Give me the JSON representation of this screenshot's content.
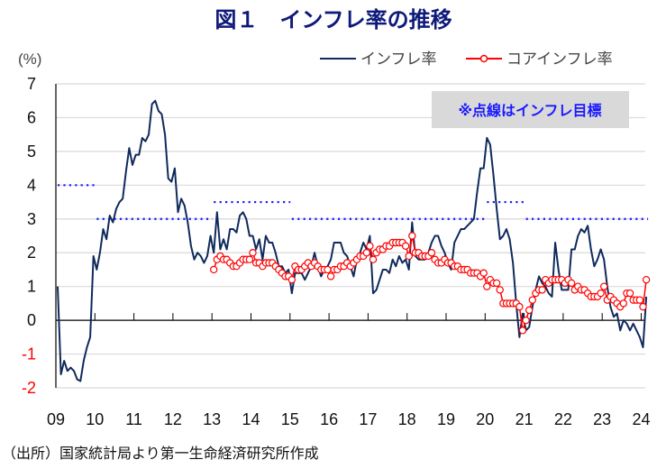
{
  "title": "図１　インフレ率の推移",
  "source": "（出所）国家統計局より第一生命経済研究所作成",
  "chart_data": {
    "type": "line",
    "title": "図１　インフレ率の推移",
    "ylabel": "(%)",
    "xlabel": "",
    "ylim": [
      -2,
      7
    ],
    "yticks": [
      "7",
      "6",
      "5",
      "4",
      "3",
      "2",
      "1",
      "0",
      "-1",
      "-2"
    ],
    "negative_tick_color": "#ff0000",
    "xticks": [
      "09",
      "10",
      "11",
      "12",
      "13",
      "14",
      "15",
      "16",
      "17",
      "18",
      "19",
      "20",
      "21",
      "22",
      "23",
      "24"
    ],
    "xrange": [
      "2009-01",
      "2024-02"
    ],
    "grid": true,
    "legend_placement": "top-right",
    "annotation": "※点線はインフレ目標",
    "series": [
      {
        "name": "インフレ率",
        "color": "#0f2a5c",
        "marker": "none",
        "monthly_values_by_year": {
          "2009": [
            1.0,
            -1.6,
            -1.2,
            -1.5,
            -1.4,
            -1.5,
            -1.75,
            -1.8,
            -1.2,
            -0.8,
            -0.5,
            1.9
          ],
          "2010": [
            1.5,
            2.0,
            2.7,
            2.4,
            3.1,
            2.9,
            3.3,
            3.5,
            3.6,
            4.4,
            5.1,
            4.6
          ],
          "2011": [
            4.9,
            4.9,
            5.4,
            5.3,
            5.5,
            6.4,
            6.5,
            6.2,
            6.1,
            5.5,
            4.2,
            4.1
          ],
          "2012": [
            4.5,
            3.2,
            3.6,
            3.4,
            2.9,
            2.2,
            1.8,
            2.0,
            1.9,
            1.7,
            1.9,
            2.5
          ],
          "2013": [
            2.0,
            3.2,
            2.1,
            2.4,
            2.1,
            2.7,
            2.7,
            2.6,
            3.1,
            3.2,
            3.0,
            2.5
          ],
          "2014": [
            2.5,
            2.1,
            2.4,
            1.8,
            2.5,
            2.3,
            2.3,
            2.0,
            1.6,
            1.6,
            1.4,
            1.5
          ],
          "2015": [
            0.8,
            1.4,
            1.4,
            1.4,
            1.2,
            1.4,
            1.6,
            2.0,
            1.6,
            1.3,
            1.5,
            1.6
          ],
          "2016": [
            1.8,
            2.3,
            2.3,
            2.3,
            2.0,
            1.9,
            1.6,
            1.3,
            1.8,
            2.0,
            2.3,
            2.1
          ],
          "2017": [
            2.5,
            0.8,
            0.9,
            1.2,
            1.5,
            1.5,
            1.4,
            1.8,
            1.6,
            1.9,
            1.7,
            1.8
          ],
          "2018": [
            1.5,
            2.9,
            1.9,
            1.8,
            1.8,
            1.8,
            2.0,
            2.3,
            2.5,
            2.5,
            2.2,
            2.0
          ],
          "2019": [
            1.7,
            1.5,
            2.3,
            2.5,
            2.7,
            2.7,
            2.8,
            2.9,
            3.0,
            3.8,
            4.5,
            4.5
          ],
          "2020": [
            5.4,
            5.2,
            4.3,
            3.3,
            2.4,
            2.5,
            2.7,
            2.4,
            1.7,
            0.5,
            -0.5,
            0.2
          ],
          "2021": [
            -0.3,
            -0.2,
            0.4,
            0.9,
            1.3,
            1.1,
            1.0,
            0.8,
            0.7,
            2.3,
            1.5,
            0.9
          ],
          "2022": [
            0.9,
            0.9,
            2.1,
            2.1,
            2.5,
            2.7,
            2.6,
            2.8,
            2.1,
            1.6,
            1.8,
            2.1
          ],
          "2023": [
            1.8,
            1.0,
            0.4,
            0.1,
            0.2,
            -0.3,
            0.0,
            -0.1,
            -0.3,
            -0.1,
            -0.3,
            -0.5
          ],
          "2024": [
            -0.8,
            0.7
          ]
        }
      },
      {
        "name": "コアインフレ率",
        "color": "#ff0000",
        "marker": "open-circle",
        "monthly_values_by_year": {
          "2013": [
            1.5,
            1.8,
            1.9,
            1.8,
            1.8,
            1.7,
            1.6,
            1.6,
            1.7,
            1.8,
            1.8,
            1.8
          ],
          "2014": [
            2.0,
            1.7,
            1.7,
            1.6,
            1.7,
            1.7,
            1.7,
            1.6,
            1.5,
            1.4,
            1.3,
            1.3
          ],
          "2015": [
            1.2,
            1.6,
            1.5,
            1.5,
            1.6,
            1.7,
            1.6,
            1.7,
            1.6,
            1.5,
            1.5,
            1.5
          ],
          "2016": [
            1.3,
            1.5,
            1.5,
            1.6,
            1.6,
            1.7,
            1.6,
            1.7,
            1.8,
            1.9,
            1.9,
            2.0
          ],
          "2017": [
            2.2,
            1.8,
            2.0,
            2.1,
            2.1,
            2.2,
            2.2,
            2.3,
            2.3,
            2.3,
            2.3,
            2.2
          ],
          "2018": [
            1.9,
            2.5,
            2.0,
            2.0,
            1.9,
            1.9,
            1.9,
            2.0,
            1.8,
            1.7,
            1.7,
            1.8
          ],
          "2019": [
            1.7,
            1.7,
            1.6,
            1.6,
            1.5,
            1.5,
            1.5,
            1.4,
            1.4,
            1.4,
            1.3,
            1.4
          ],
          "2020": [
            1.0,
            1.2,
            1.1,
            1.1,
            0.9,
            0.5,
            0.5,
            0.5,
            0.5,
            0.5,
            0.4,
            -0.3
          ],
          "2021": [
            0.0,
            0.3,
            0.6,
            0.8,
            0.9,
            0.9,
            1.2,
            1.1,
            1.2,
            1.2,
            1.2,
            1.2
          ],
          "2022": [
            1.1,
            1.2,
            1.1,
            0.9,
            1.0,
            0.9,
            0.9,
            0.8,
            0.7,
            0.7,
            0.7,
            0.8
          ],
          "2023": [
            1.0,
            0.6,
            0.7,
            0.6,
            0.5,
            0.4,
            0.5,
            0.8,
            0.8,
            0.6,
            0.6,
            0.6
          ],
          "2024": [
            0.4,
            1.2
          ]
        }
      }
    ],
    "inflation_targets": {
      "color": "#1a1aff",
      "style": "dotted",
      "segments": [
        {
          "from": "2009-01",
          "to": "2009-12",
          "value": 4
        },
        {
          "from": "2010-01",
          "to": "2012-12",
          "value": 3
        },
        {
          "from": "2013-01",
          "to": "2014-12",
          "value": 3.5
        },
        {
          "from": "2015-01",
          "to": "2019-12",
          "value": 3
        },
        {
          "from": "2020-01",
          "to": "2020-12",
          "value": 3.5
        },
        {
          "from": "2021-01",
          "to": "2024-02",
          "value": 3
        }
      ]
    }
  }
}
